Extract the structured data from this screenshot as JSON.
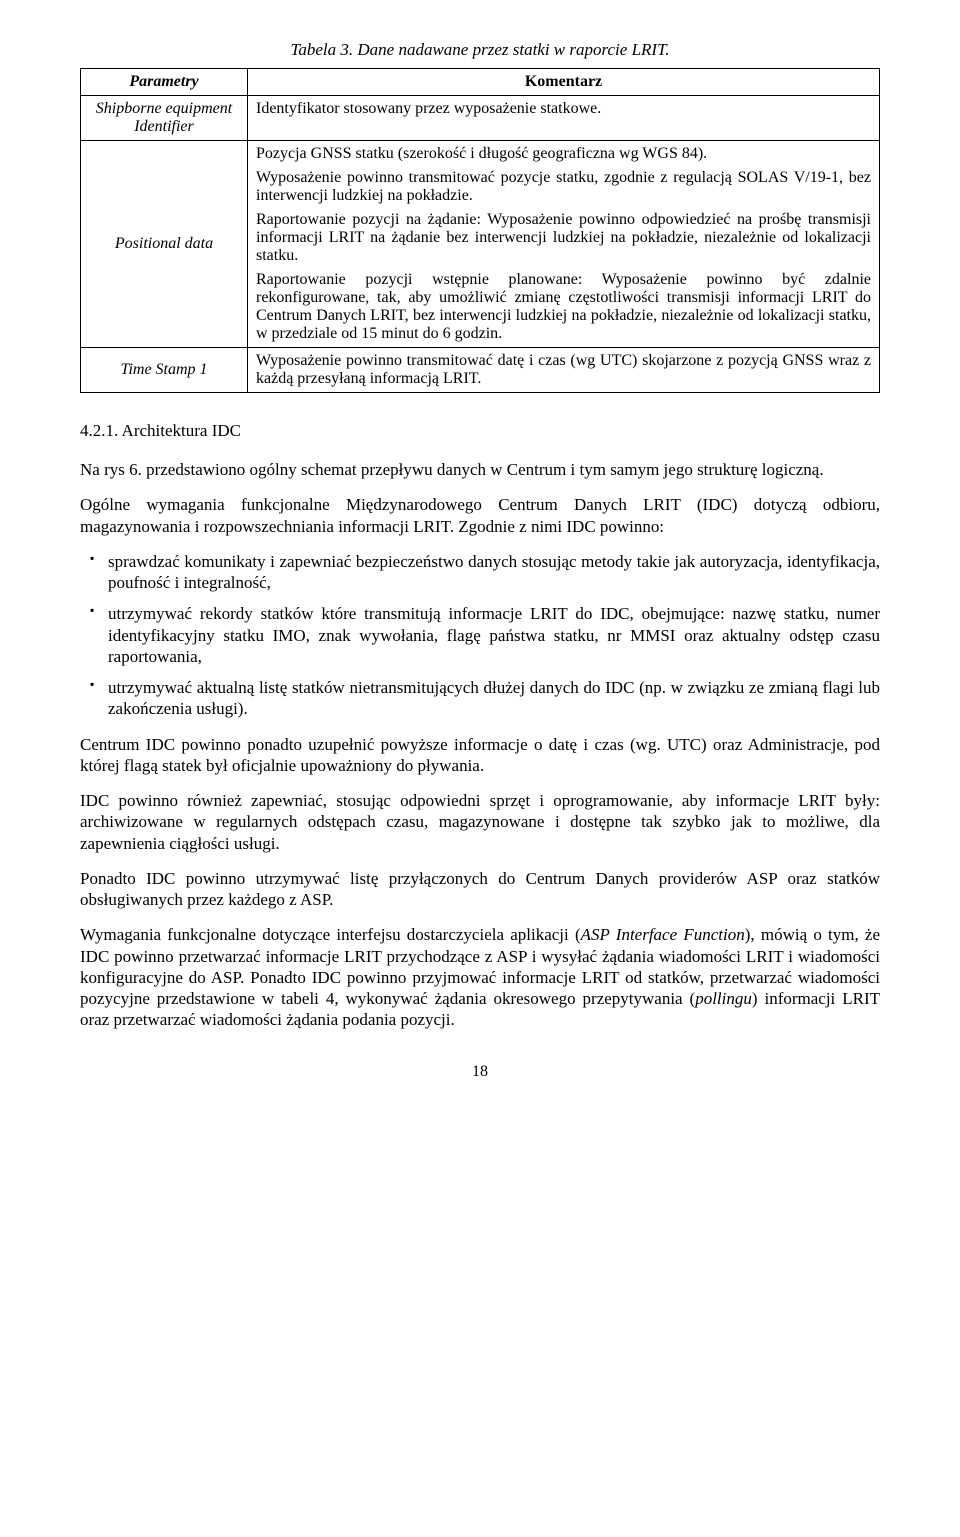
{
  "table": {
    "caption": "Tabela 3. Dane nadawane przez statki w raporcie LRIT.",
    "headers": {
      "param": "Parametry",
      "comment": "Komentarz"
    },
    "rows": [
      {
        "param": "Shipborne equipment Identifier",
        "paragraphs": [
          "Identyfikator stosowany przez wyposażenie statkowe."
        ]
      },
      {
        "param": "Positional data",
        "paragraphs": [
          "Pozycja GNSS statku (szerokość i długość geograficzna wg WGS 84).",
          "Wyposażenie powinno transmitować pozycje statku, zgodnie z regulacją SOLAS V/19-1, bez interwencji ludzkiej na pokładzie.",
          "Raportowanie pozycji na żądanie: Wyposażenie powinno odpowiedzieć na prośbę transmisji informacji LRIT na żądanie bez interwencji ludzkiej na pokładzie, niezależnie od lokalizacji statku.",
          "Raportowanie pozycji wstępnie planowane: Wyposażenie powinno być zdalnie rekonfigurowane, tak, aby umożliwić zmianę częstotliwości transmisji informacji LRIT do Centrum Danych LRIT, bez interwencji ludzkiej na pokładzie, niezależnie od lokalizacji statku, w przedziale od 15 minut do 6 godzin."
        ]
      },
      {
        "param": "Time Stamp 1",
        "paragraphs": [
          "Wyposażenie powinno transmitować datę i czas (wg UTC) skojarzone z pozycją GNSS wraz z każdą przesyłaną informacją LRIT."
        ]
      }
    ]
  },
  "section_heading": "4.2.1. Architektura IDC",
  "para1": "Na rys 6. przedstawiono ogólny schemat przepływu danych w Centrum i tym samym jego strukturę logiczną.",
  "para2": "Ogólne wymagania funkcjonalne Międzynarodowego Centrum Danych LRIT (IDC) dotyczą odbioru, magazynowania i rozpowszechniania informacji LRIT. Zgodnie z nimi IDC powinno:",
  "bullets": [
    "sprawdzać komunikaty i zapewniać bezpieczeństwo danych stosując metody takie jak autoryzacja, identyfikacja, poufność i integralność,",
    "utrzymywać rekordy statków które transmitują informacje LRIT do IDC, obejmujące: nazwę statku, numer identyfikacyjny statku IMO, znak wywołania, flagę państwa statku, nr MMSI oraz aktualny odstęp czasu raportowania,",
    "utrzymywać aktualną listę statków nietransmitujących dłużej danych do IDC (np. w związku ze zmianą flagi lub zakończenia usługi)."
  ],
  "para3": "Centrum IDC powinno ponadto uzupełnić powyższe informacje o datę i czas (wg. UTC) oraz Administracje, pod której flagą statek był oficjalnie upoważniony do pływania.",
  "para4": "IDC powinno również zapewniać, stosując odpowiedni sprzęt i oprogramowanie, aby informacje LRIT były: archiwizowane w regularnych odstępach czasu, magazynowane i dostępne tak szybko jak to możliwe, dla zapewnienia ciągłości usługi.",
  "para5": "Ponadto IDC powinno utrzymywać listę przyłączonych do Centrum Danych providerów ASP oraz statków obsługiwanych przez każdego z ASP.",
  "para6_pre": "Wymagania funkcjonalne dotyczące interfejsu dostarczyciela aplikacji (",
  "para6_italic1": "ASP Interface Function",
  "para6_mid": "), mówią o tym, że IDC powinno przetwarzać informacje LRIT przychodzące z ASP i wysyłać żądania wiadomości LRIT i wiadomości konfiguracyjne do ASP. Ponadto IDC powinno przyjmować informacje LRIT od statków, przetwarzać wiadomości pozycyjne przedstawione w tabeli 4, wykonywać żądania okresowego przepytywania (",
  "para6_italic2": "pollingu",
  "para6_post": ") informacji LRIT oraz przetwarzać wiadomości żądania podania pozycji.",
  "page_number": "18"
}
